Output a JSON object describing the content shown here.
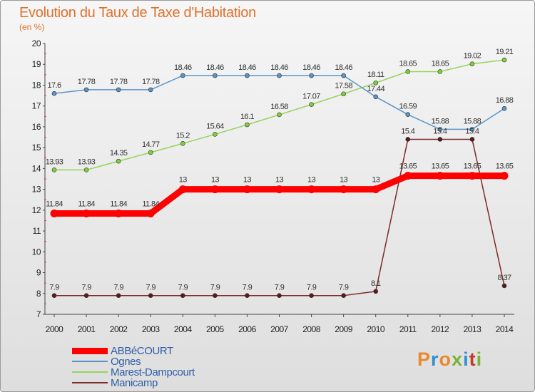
{
  "header": {
    "title": "Evolution du Taux de Taxe d'Habitation",
    "unit": "(en %)"
  },
  "brand": {
    "text": "Proxiti",
    "colors": [
      "#e8892c",
      "#2f8fd2",
      "#e8892c",
      "#7ab33a",
      "#2f8fd2",
      "#c0392b",
      "#7ab33a"
    ]
  },
  "chart_data": {
    "type": "line",
    "title": "Evolution du Taux de Taxe d'Habitation",
    "ylabel": "(en %)",
    "xlabel": "",
    "x": [
      "2000",
      "2001",
      "2002",
      "2003",
      "2004",
      "2005",
      "2006",
      "2007",
      "2008",
      "2009",
      "2010",
      "2011",
      "2012",
      "2013",
      "2014"
    ],
    "ylim": [
      7,
      20
    ],
    "yticks": [
      7,
      8,
      9,
      10,
      11,
      12,
      13,
      14,
      15,
      16,
      17,
      18,
      19,
      20
    ],
    "grid": false,
    "legend_position": "bottom-left",
    "series": [
      {
        "name": "ABBéCOURT",
        "color": "#ff0000",
        "values": [
          11.84,
          11.84,
          11.84,
          11.84,
          13,
          13,
          13,
          13,
          13,
          13,
          13,
          13.65,
          13.65,
          13.65,
          13.65
        ],
        "labels": [
          "11.84",
          "11.84",
          "11.84",
          "11.84",
          "13",
          "13",
          "13",
          "13",
          "13",
          "13",
          "13",
          "13.65",
          "13.65",
          "13.65",
          "13.65"
        ]
      },
      {
        "name": "Ognes",
        "color": "#5b95c8",
        "values": [
          17.6,
          17.78,
          17.78,
          17.78,
          18.46,
          18.46,
          18.46,
          18.46,
          18.46,
          18.46,
          17.44,
          16.59,
          15.88,
          15.88,
          16.88
        ],
        "labels": [
          "17.6",
          "17.78",
          "17.78",
          "17.78",
          "18.46",
          "18.46",
          "18.46",
          "18.46",
          "18.46",
          "18.46",
          "17.44",
          "16.59",
          "15.88",
          "15.88",
          "16.88"
        ]
      },
      {
        "name": "Marest-Dampcourt",
        "color": "#96d35f",
        "values": [
          13.93,
          13.93,
          14.35,
          14.77,
          15.2,
          15.64,
          16.1,
          16.58,
          17.07,
          17.58,
          18.11,
          18.65,
          18.65,
          19.02,
          19.21
        ],
        "labels": [
          "13.93",
          "13.93",
          "14.35",
          "14.77",
          "15.2",
          "15.64",
          "16.1",
          "16.58",
          "17.07",
          "17.58",
          "18.11",
          "18.65",
          "18.65",
          "19.02",
          "19.21"
        ]
      },
      {
        "name": "Manicamp",
        "color": "#7b2b2b",
        "values": [
          7.9,
          7.9,
          7.9,
          7.9,
          7.9,
          7.9,
          7.9,
          7.9,
          7.9,
          7.9,
          8.1,
          15.4,
          15.4,
          15.4,
          8.37
        ],
        "labels": [
          "7.9",
          "7.9",
          "7.9",
          "7.9",
          "7.9",
          "7.9",
          "7.9",
          "7.9",
          "7.9",
          "7.9",
          "8.1",
          "15.4",
          "15.4",
          "15.4",
          "8.37"
        ]
      }
    ]
  }
}
